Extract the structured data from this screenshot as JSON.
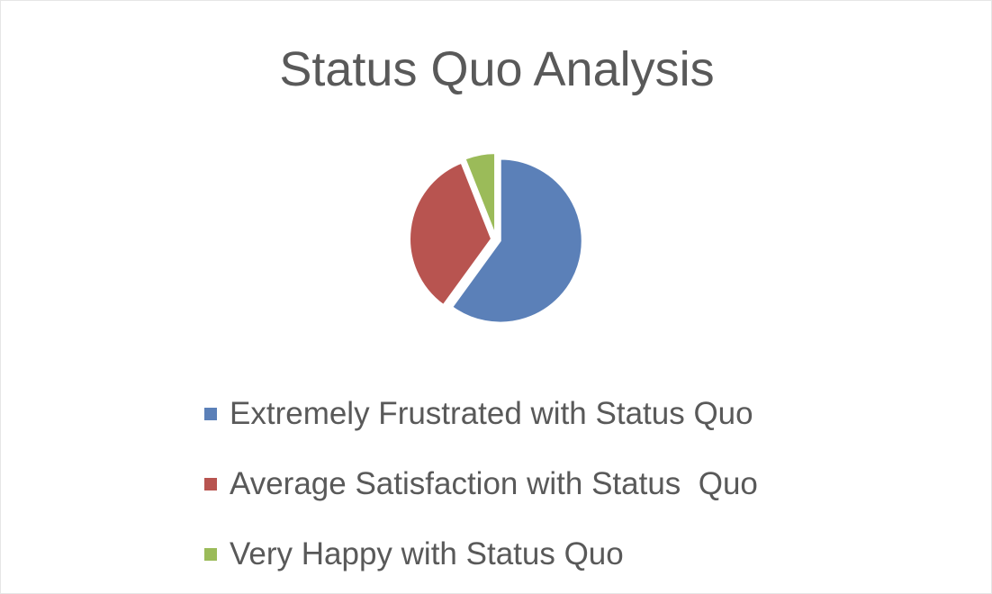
{
  "chart_data": {
    "type": "pie",
    "title": "Status Quo Analysis",
    "categories": [
      "Extremely Frustrated with Status Quo",
      "Average Satisfaction with Status  Quo",
      "Very Happy with Status Quo"
    ],
    "values": [
      60,
      34,
      6
    ],
    "colors": [
      "#5b80b8",
      "#b85450",
      "#9bbb59"
    ],
    "legend_position": "bottom",
    "exploded": true
  }
}
